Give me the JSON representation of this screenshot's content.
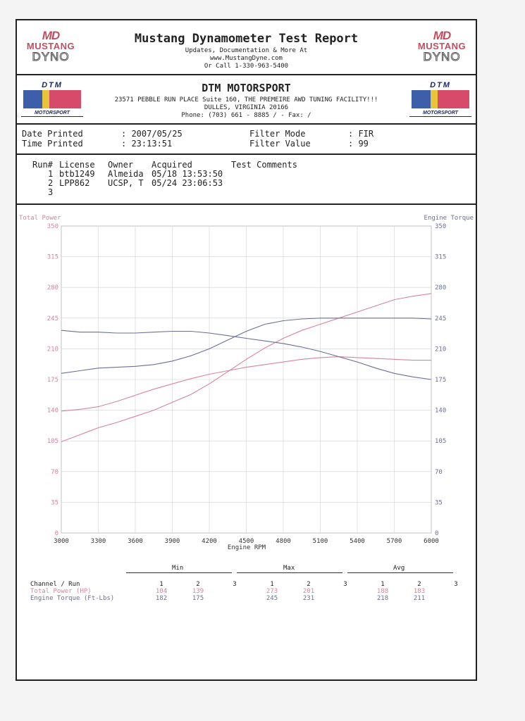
{
  "header": {
    "title": "Mustang Dynamometer Test Report",
    "line1": "Updates, Documentation & More At",
    "line2": "www.MustangDyne.com",
    "line3": "Or Call 1-330-963-5400",
    "logo_md": "MD",
    "logo_line1": "MUSTANG",
    "logo_line2": "DYNO"
  },
  "shop": {
    "name": "DTM MOTORSPORT",
    "address1": "23571 PEBBLE RUN PLACE Suite 160, THE PREMEIRE AWD TUNING FACILITY!!!",
    "address2": "DULLES, VIRGINIA  20166",
    "phone": "Phone: (703) 661 - 8885 /  - Fax:  /",
    "logo_top": "DTM",
    "logo_bottom": "MOTORSPORT"
  },
  "info": {
    "date_label": "Date Printed",
    "date_value": ": 2007/05/25",
    "time_label": "Time Printed",
    "time_value": ": 23:13:51",
    "filter_mode_label": "Filter Mode",
    "filter_mode_value": ": FIR",
    "filter_value_label": "Filter Value",
    "filter_value_value": ": 99"
  },
  "runs": {
    "headers": [
      "Run#",
      "License",
      "Owner",
      "Acquired",
      "Test Comments"
    ],
    "rows": [
      {
        "run": "1",
        "license": "btb1249",
        "owner": "Almeida",
        "acquired": "05/18 13:53:50"
      },
      {
        "run": "2",
        "license": "LPP862",
        "owner": "UCSP, T",
        "acquired": "05/24 23:06:53"
      },
      {
        "run": "3",
        "license": "",
        "owner": "",
        "acquired": ""
      }
    ]
  },
  "stats": {
    "groups": [
      "Min",
      "Max",
      "Avg"
    ],
    "header_label": "Channel / Run",
    "run_labels": [
      "1",
      "2",
      "3"
    ],
    "power_label": "Total Power (HP)",
    "torque_label": "Engine Torque (Ft-Lbs)",
    "power_min": [
      "104",
      "139",
      ""
    ],
    "power_max": [
      "273",
      "201",
      ""
    ],
    "power_avg": [
      "188",
      "183",
      ""
    ],
    "torque_min": [
      "182",
      "175",
      ""
    ],
    "torque_max": [
      "245",
      "231",
      ""
    ],
    "torque_avg": [
      "218",
      "211",
      ""
    ]
  },
  "colors": {
    "power": "#d8849a",
    "torque": "#6a6f96",
    "grid": "#d0d0d0"
  },
  "chart_data": {
    "type": "line",
    "xlabel": "Engine RPM",
    "ylabel_left": "Total Power",
    "ylabel_right": "Engine Torque",
    "xlim": [
      3000,
      6000
    ],
    "ylim": [
      0,
      350
    ],
    "x_ticks": [
      3000,
      3300,
      3600,
      3900,
      4200,
      4500,
      4800,
      5100,
      5400,
      5700,
      6000
    ],
    "y_ticks": [
      0,
      35,
      70,
      105,
      140,
      175,
      210,
      245,
      280,
      315,
      350
    ],
    "grid": true,
    "series": [
      {
        "name": "Total Power",
        "color": "#d8849a",
        "x": [
          3000,
          3150,
          3300,
          3450,
          3600,
          3750,
          3900,
          4050,
          4200,
          4350,
          4500,
          4650,
          4800,
          4950,
          5100,
          5250,
          5400,
          5550,
          5700,
          5850,
          6000
        ],
        "y": [
          104,
          112,
          120,
          126,
          133,
          140,
          149,
          158,
          170,
          184,
          198,
          211,
          222,
          231,
          238,
          245,
          252,
          259,
          266,
          270,
          273
        ]
      },
      {
        "name": "Total Power",
        "color": "#d8849a",
        "x": [
          3000,
          3150,
          3300,
          3450,
          3600,
          3750,
          3900,
          4050,
          4200,
          4350,
          4500,
          4650,
          4800,
          4950,
          5100,
          5250,
          5400,
          5550,
          5700,
          5850,
          6000
        ],
        "y": [
          139,
          141,
          144,
          150,
          157,
          164,
          170,
          176,
          181,
          185,
          189,
          192,
          195,
          198,
          200,
          201,
          200,
          199,
          198,
          197,
          197
        ]
      },
      {
        "name": "Engine Torque",
        "color": "#6a6f96",
        "x": [
          3000,
          3150,
          3300,
          3450,
          3600,
          3750,
          3900,
          4050,
          4200,
          4350,
          4500,
          4650,
          4800,
          4950,
          5100,
          5250,
          5400,
          5550,
          5700,
          5850,
          6000
        ],
        "y": [
          182,
          185,
          188,
          189,
          190,
          192,
          196,
          202,
          210,
          220,
          230,
          238,
          242,
          244,
          245,
          245,
          245,
          245,
          245,
          245,
          244
        ]
      },
      {
        "name": "Engine Torque",
        "color": "#6a6f96",
        "x": [
          3000,
          3150,
          3300,
          3450,
          3600,
          3750,
          3900,
          4050,
          4200,
          4350,
          4500,
          4650,
          4800,
          4950,
          5100,
          5250,
          5400,
          5550,
          5700,
          5850,
          6000
        ],
        "y": [
          231,
          229,
          229,
          228,
          228,
          229,
          230,
          230,
          228,
          225,
          222,
          219,
          216,
          212,
          207,
          201,
          195,
          188,
          182,
          178,
          175
        ]
      }
    ]
  }
}
